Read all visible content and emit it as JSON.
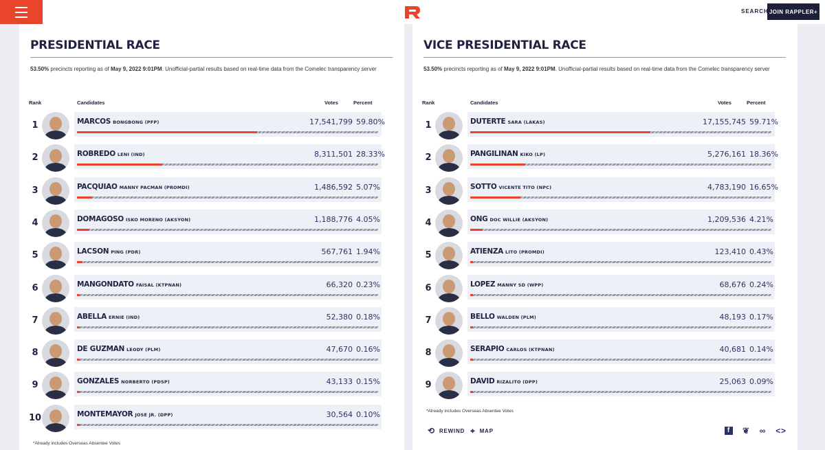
{
  "header": {
    "search_label": "SEARCH",
    "join_label": "JOIN RAPPLER+",
    "brand_color": "#e8452c"
  },
  "presidential": {
    "title": "PRESIDENTIAL RACE",
    "note_pct": "53.50%",
    "note_mid": " precincts reporting as of ",
    "note_date": "May 9, 2022 9:01PM",
    "note_end": ". Unofficial-partial results based on real-time data from the Comelec transparency server",
    "col_rank": "Rank",
    "col_candidates": "Candidates",
    "col_votes": "Votes",
    "col_percent": "Percent",
    "footnote": "*Already includes Overseas Absentee Votes",
    "rows": [
      {
        "rank": "1",
        "surname": "MARCOS",
        "sub": "BONGBONG (PFP)",
        "votes": "17,541,799",
        "percent": "59.80%",
        "share": 0.598
      },
      {
        "rank": "2",
        "surname": "ROBREDO",
        "sub": "LENI (IND)",
        "votes": "8,311,501",
        "percent": "28.33%",
        "share": 0.2833
      },
      {
        "rank": "3",
        "surname": "PACQUIAO",
        "sub": "MANNY PACMAN (PROMDI)",
        "votes": "1,486,592",
        "percent": "5.07%",
        "share": 0.0507
      },
      {
        "rank": "4",
        "surname": "DOMAGOSO",
        "sub": "ISKO MORENO (AKSYON)",
        "votes": "1,188,776",
        "percent": "4.05%",
        "share": 0.0405
      },
      {
        "rank": "5",
        "surname": "LACSON",
        "sub": "PING (PDR)",
        "votes": "567,761",
        "percent": "1.94%",
        "share": 0.0194
      },
      {
        "rank": "6",
        "surname": "MANGONDATO",
        "sub": "FAISAL (KTPNAN)",
        "votes": "66,320",
        "percent": "0.23%",
        "share": 0.0023
      },
      {
        "rank": "7",
        "surname": "ABELLA",
        "sub": "ERNIE (IND)",
        "votes": "52,380",
        "percent": "0.18%",
        "share": 0.0018
      },
      {
        "rank": "8",
        "surname": "DE GUZMAN",
        "sub": "LEODY (PLM)",
        "votes": "47,670",
        "percent": "0.16%",
        "share": 0.0016
      },
      {
        "rank": "9",
        "surname": "GONZALES",
        "sub": "NORBERTO (PDSP)",
        "votes": "43,133",
        "percent": "0.15%",
        "share": 0.0015
      },
      {
        "rank": "10",
        "surname": "MONTEMAYOR",
        "sub": "JOSE JR. (DPP)",
        "votes": "30,564",
        "percent": "0.10%",
        "share": 0.001
      }
    ]
  },
  "vice": {
    "title": "VICE PRESIDENTIAL RACE",
    "note_pct": "53.50%",
    "note_mid": " precincts reporting as of ",
    "note_date": "May 9, 2022 9:01PM",
    "note_end": ". Unofficial-partial results based on real-time data from the Comelec transparency server",
    "col_rank": "Rank",
    "col_candidates": "Candidates",
    "col_votes": "Votes",
    "col_percent": "Percent",
    "footnote": "*Already includes Overseas Absentee Votes",
    "rewind_label": "REWIND",
    "map_label": "MAP",
    "rows": [
      {
        "rank": "1",
        "surname": "DUTERTE",
        "sub": "SARA (LAKAS)",
        "votes": "17,155,745",
        "percent": "59.71%",
        "share": 0.5971
      },
      {
        "rank": "2",
        "surname": "PANGILINAN",
        "sub": "KIKO (LP)",
        "votes": "5,276,161",
        "percent": "18.36%",
        "share": 0.1836
      },
      {
        "rank": "3",
        "surname": "SOTTO",
        "sub": "VICENTE TITO (NPC)",
        "votes": "4,783,190",
        "percent": "16.65%",
        "share": 0.1665
      },
      {
        "rank": "4",
        "surname": "ONG",
        "sub": "DOC WILLIE (AKSYON)",
        "votes": "1,209,536",
        "percent": "4.21%",
        "share": 0.0421
      },
      {
        "rank": "5",
        "surname": "ATIENZA",
        "sub": "LITO (PROMDI)",
        "votes": "123,410",
        "percent": "0.43%",
        "share": 0.0043
      },
      {
        "rank": "6",
        "surname": "LOPEZ",
        "sub": "MANNY SD (WPP)",
        "votes": "68,676",
        "percent": "0.24%",
        "share": 0.0024
      },
      {
        "rank": "7",
        "surname": "BELLO",
        "sub": "WALDEN (PLM)",
        "votes": "48,193",
        "percent": "0.17%",
        "share": 0.0017
      },
      {
        "rank": "8",
        "surname": "SERAPIO",
        "sub": "CARLOS (KTPNAN)",
        "votes": "40,681",
        "percent": "0.14%",
        "share": 0.0014
      },
      {
        "rank": "9",
        "surname": "DAVID",
        "sub": "RIZALITO (DPP)",
        "votes": "25,063",
        "percent": "0.09%",
        "share": 0.0009
      }
    ]
  }
}
